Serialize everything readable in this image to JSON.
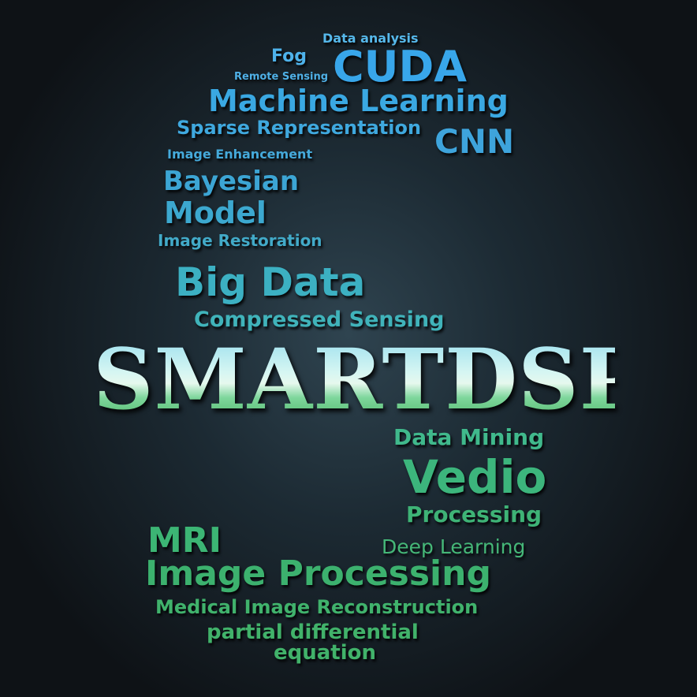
{
  "title": "SMARTDSP",
  "words": {
    "data_analysis": "Data analysis",
    "fog": "Fog",
    "cuda": "CUDA",
    "remote_sensing": "Remote Sensing",
    "machine_learning": "Machine Learning",
    "sparse_representation": "Sparse Representation",
    "cnn": "CNN",
    "image_enhancement": "Image Enhancement",
    "bayesian": "Bayesian",
    "model": "Model",
    "image_restoration": "Image Restoration",
    "big_data": "Big Data",
    "compressed_sensing": "Compressed Sensing",
    "data_mining": "Data Mining",
    "vedio": "Vedio",
    "processing": "Processing",
    "mri": "MRI",
    "deep_learning": "Deep Learning",
    "image_processing": "Image Processing",
    "medical_image_reconstruction": "Medical Image Reconstruction",
    "partial_differential": "partial differential",
    "equation": "equation"
  },
  "colors": {
    "blue": "#3aa8e6",
    "light_blue": "#4fb4e8",
    "teal": "#3fb0c0",
    "teal_green": "#3fb9a0",
    "green": "#3fb370"
  }
}
